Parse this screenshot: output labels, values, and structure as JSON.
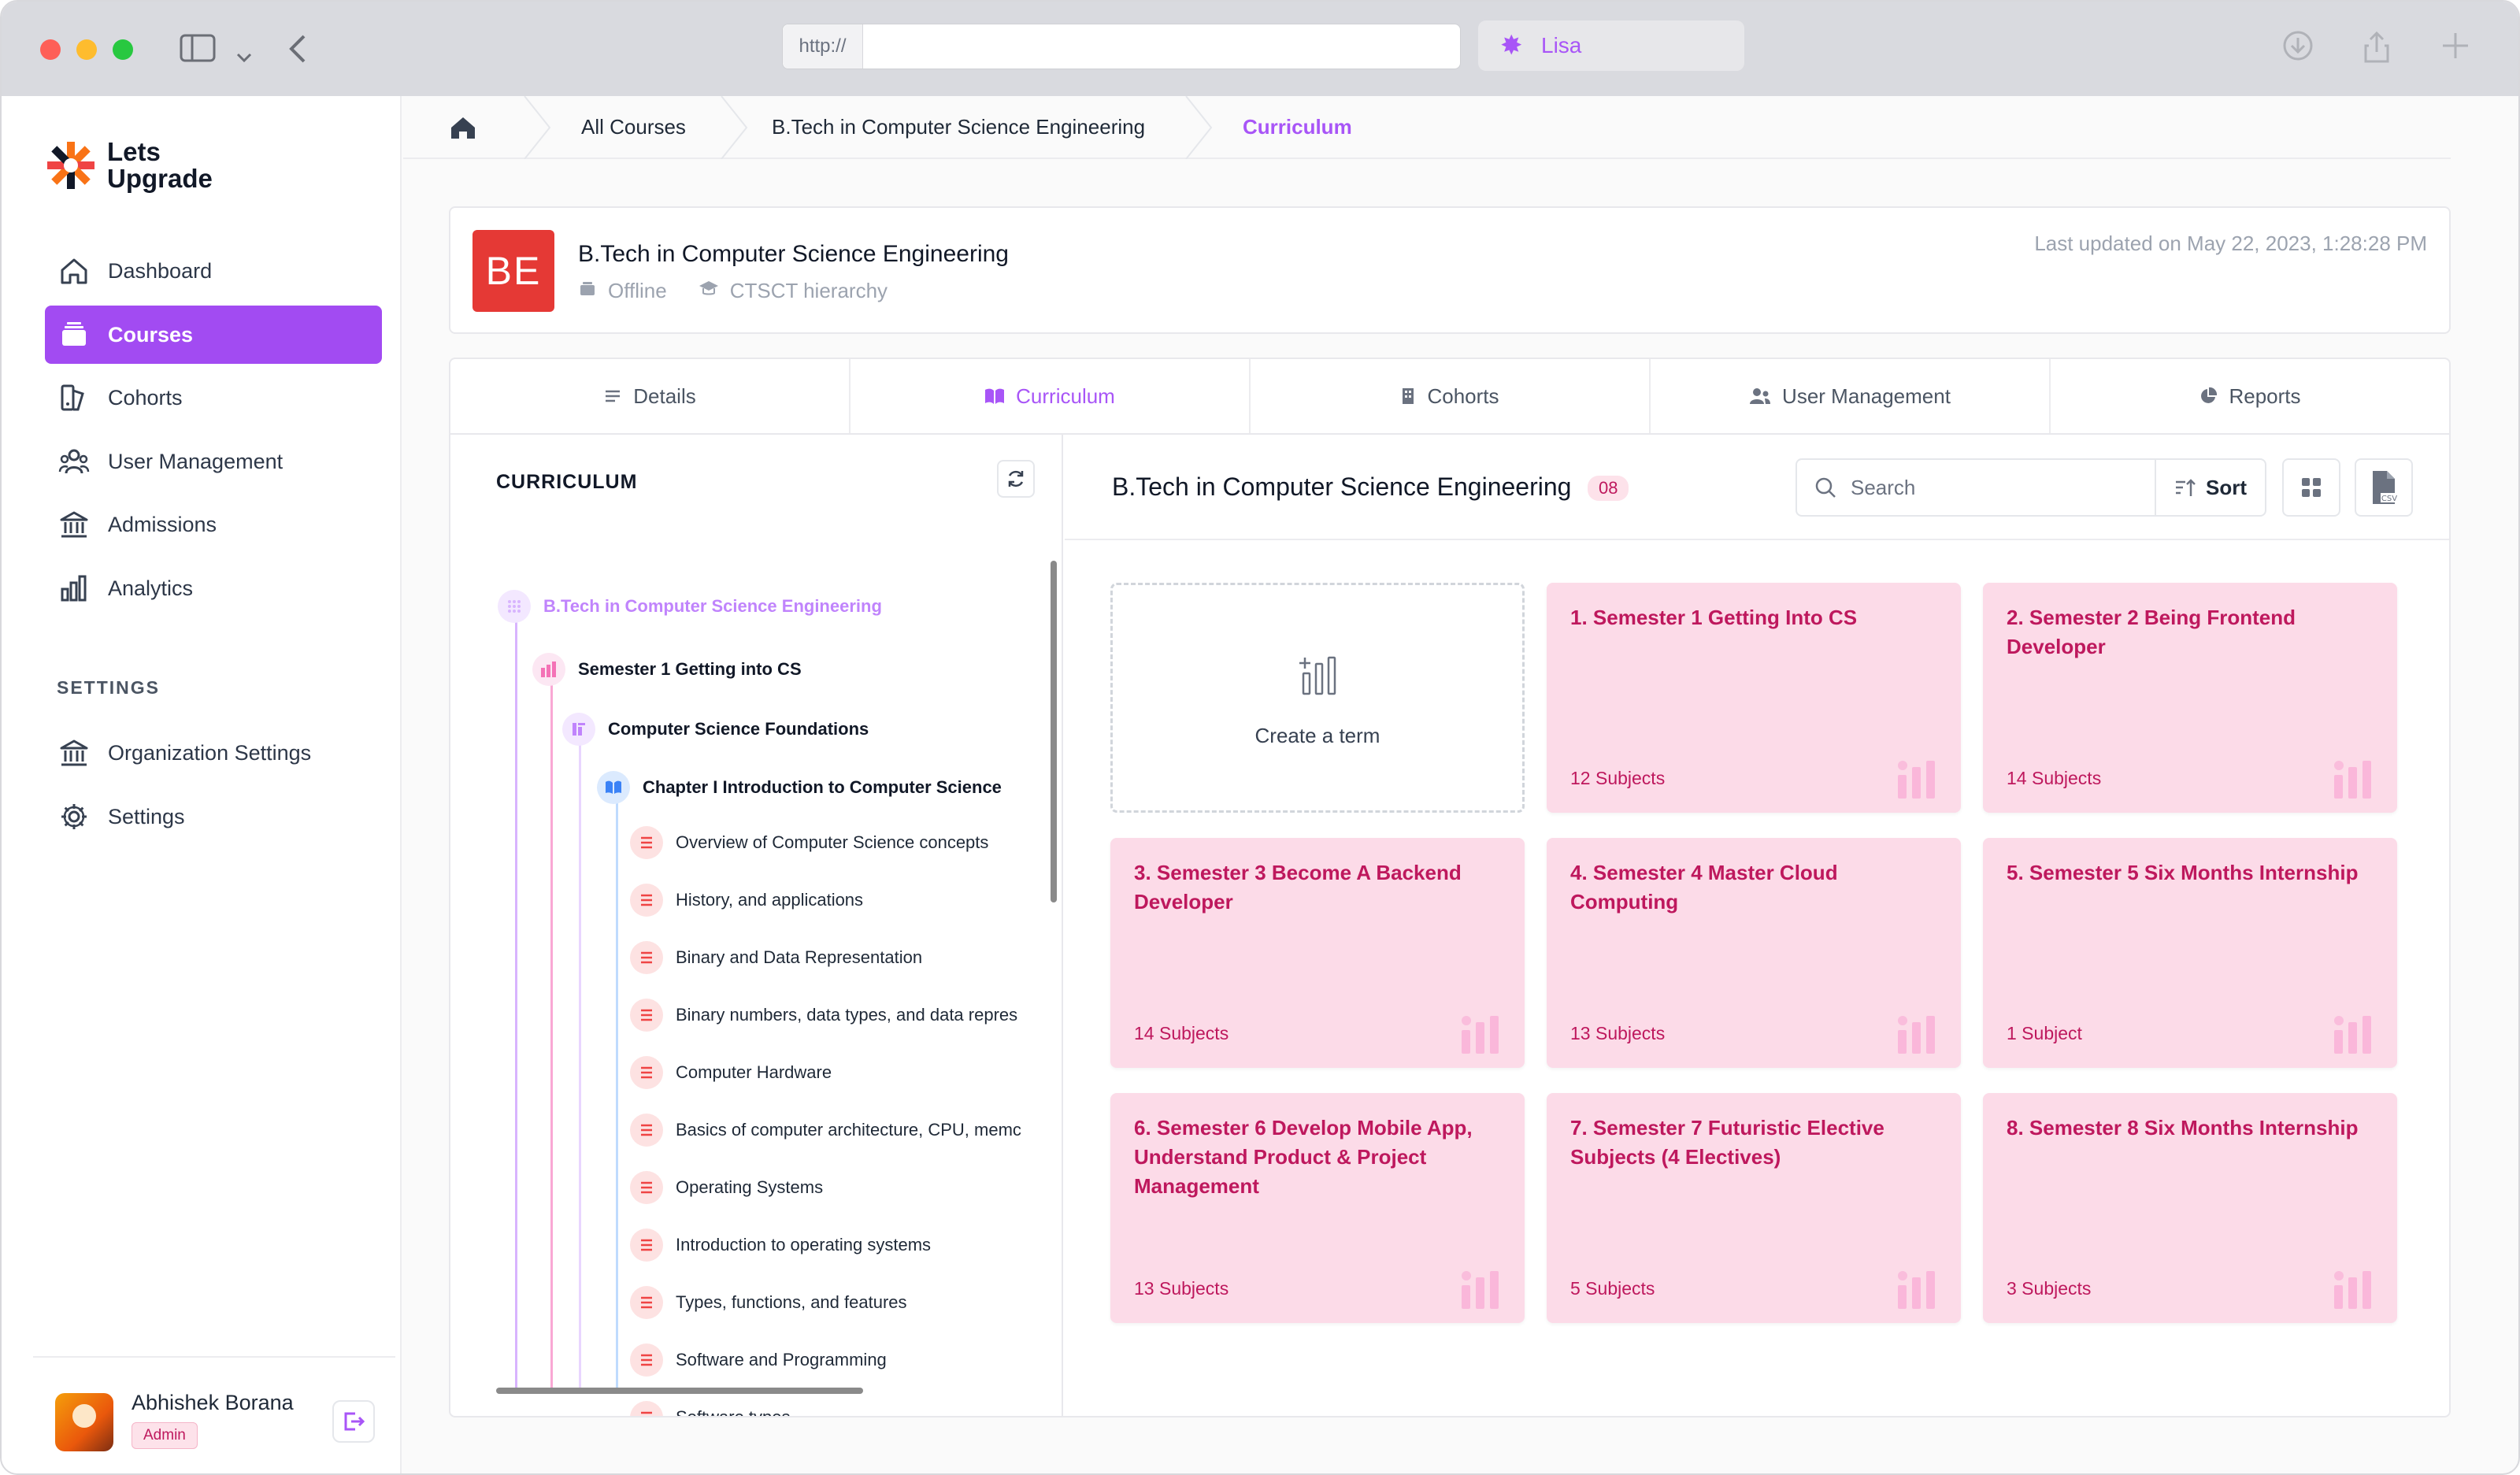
{
  "browser": {
    "url_prefix": "http://",
    "url": "",
    "profile_name": "Lisa"
  },
  "brand": {
    "name_line1": "Lets",
    "name_line2": "Upgrade",
    "accent": "#a24bf2"
  },
  "sidebar": {
    "items": [
      {
        "label": "Dashboard",
        "icon": "home-icon"
      },
      {
        "label": "Courses",
        "icon": "courses-icon",
        "active": true
      },
      {
        "label": "Cohorts",
        "icon": "cohorts-icon"
      },
      {
        "label": "User Management",
        "icon": "users-icon"
      },
      {
        "label": "Admissions",
        "icon": "admissions-icon"
      },
      {
        "label": "Analytics",
        "icon": "analytics-icon"
      }
    ],
    "settings_heading": "SETTINGS",
    "settings_items": [
      {
        "label": "Organization Settings",
        "icon": "organization-icon"
      },
      {
        "label": "Settings",
        "icon": "gear-icon"
      }
    ],
    "user": {
      "name": "Abhishek Borana",
      "role": "Admin"
    }
  },
  "breadcrumb": {
    "items": [
      "All Courses",
      "B.Tech in Computer Science Engineering",
      "Curriculum"
    ]
  },
  "course": {
    "initials": "BE",
    "title": "B.Tech in Computer Science Engineering",
    "mode": "Offline",
    "hierarchy": "CTSCT hierarchy",
    "last_updated": "Last updated on May 22, 2023, 1:28:28 PM"
  },
  "tabs": [
    {
      "label": "Details",
      "icon": "details-icon"
    },
    {
      "label": "Curriculum",
      "icon": "book-icon",
      "active": true
    },
    {
      "label": "Cohorts",
      "icon": "building-icon"
    },
    {
      "label": "User Management",
      "icon": "users-icon"
    },
    {
      "label": "Reports",
      "icon": "pie-chart-icon"
    }
  ],
  "tree": {
    "heading": "CURRICULUM",
    "root": "B.Tech in Computer Science Engineering",
    "semester": "Semester 1 Getting into CS",
    "subject": "Computer Science Foundations",
    "chapter": "Chapter I Introduction to Computer Science",
    "lessons": [
      "Overview of Computer Science concepts",
      "History, and applications",
      "Binary and Data Representation",
      "Binary numbers, data types, and data repres",
      "Computer Hardware",
      "Basics of computer architecture, CPU, memc",
      "Operating Systems",
      "Introduction to operating systems",
      "Types, functions, and features",
      "Software and Programming",
      "Software types"
    ]
  },
  "terms": {
    "title": "B.Tech in Computer Science Engineering",
    "count": "08",
    "search_placeholder": "Search",
    "sort_label": "Sort",
    "create_label": "Create a term",
    "cards": [
      {
        "title": "1. Semester 1 Getting Into CS",
        "subjects": "12 Subjects"
      },
      {
        "title": "2. Semester 2 Being Frontend Developer",
        "subjects": "14 Subjects"
      },
      {
        "title": "3. Semester 3 Become A Backend Developer",
        "subjects": "14 Subjects"
      },
      {
        "title": "4. Semester 4 Master Cloud Computing",
        "subjects": "13 Subjects"
      },
      {
        "title": "5. Semester 5 Six Months Internship",
        "subjects": "1 Subject"
      },
      {
        "title": "6. Semester 6 Develop Mobile App, Understand Product & Project Management",
        "subjects": "13 Subjects"
      },
      {
        "title": "7. Semester 7 Futuristic Elective Subjects (4 Electives)",
        "subjects": "5 Subjects"
      },
      {
        "title": "8. Semester 8 Six Months Internship",
        "subjects": "3 Subjects"
      }
    ]
  }
}
